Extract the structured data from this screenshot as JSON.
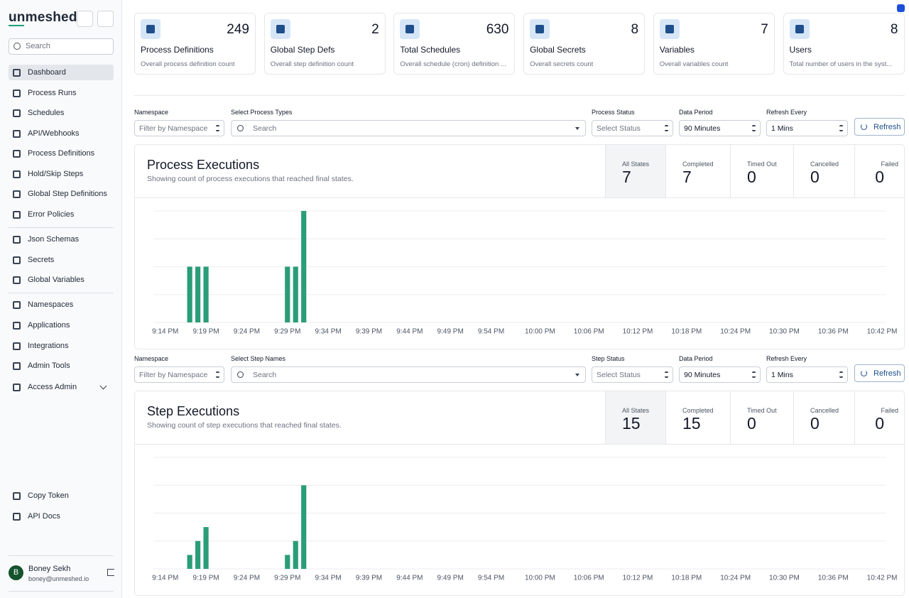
{
  "sidebar": {
    "logo": "unmeshed",
    "search_placeholder": "Search",
    "nav": [
      "Dashboard",
      "Process Runs",
      "Schedules",
      "API/Webhooks",
      "Process Definitions",
      "Hold/Skip Steps",
      "Global Step Definitions",
      "Error Policies",
      "Json Schemas",
      "Secrets",
      "Global Variables",
      "Namespaces",
      "Applications",
      "Integrations",
      "Admin Tools",
      "Access Admin"
    ],
    "bottom_nav": [
      "Copy Token",
      "API Docs"
    ],
    "user": {
      "initial": "B",
      "name": "Boney Sekh",
      "email": "boney@unmeshed.io"
    }
  },
  "stats": [
    {
      "value": 249,
      "title": "Process Definitions",
      "subtitle": "Overall process definition count"
    },
    {
      "value": 2,
      "title": "Global Step Defs",
      "subtitle": "Overall step definition count"
    },
    {
      "value": 630,
      "title": "Total Schedules",
      "subtitle": "Overall schedule (cron) definition ..."
    },
    {
      "value": 8,
      "title": "Global Secrets",
      "subtitle": "Overall secrets count"
    },
    {
      "value": 7,
      "title": "Variables",
      "subtitle": "Overall variables count"
    },
    {
      "value": 8,
      "title": "Users",
      "subtitle": "Total number of users in the syst..."
    }
  ],
  "sections": [
    {
      "filters": {
        "labels": [
          "Namespace",
          "Select Process Types",
          "Process Status",
          "Data Period",
          "Refresh Every"
        ],
        "fields": [
          "Filter by Namespace",
          "Search",
          "Select Status",
          "90 Minutes",
          "1 Mins"
        ],
        "button": "Refresh"
      },
      "title": "Process Executions",
      "subtitle": "Showing count of process executions that reached final states.",
      "states": [
        {
          "label": "All States",
          "value": 7
        },
        {
          "label": "Completed",
          "value": 7
        },
        {
          "label": "Timed Out",
          "value": 0
        },
        {
          "label": "Cancelled",
          "value": 0
        },
        {
          "label": "Failed",
          "value": 0
        }
      ]
    },
    {
      "filters": {
        "labels": [
          "Namespace",
          "Select Step Names",
          "Step Status",
          "Data Period",
          "Refresh Every"
        ],
        "fields": [
          "Filter by Namespace",
          "Search",
          "Select Status",
          "90 Minutes",
          "1 Mins"
        ],
        "button": "Refresh"
      },
      "title": "Step Executions",
      "subtitle": "Showing count of step executions that reached final states.",
      "states": [
        {
          "label": "All States",
          "value": 15
        },
        {
          "label": "Completed",
          "value": 15
        },
        {
          "label": "Timed Out",
          "value": 0
        },
        {
          "label": "Cancelled",
          "value": 0
        },
        {
          "label": "Failed",
          "value": 0
        }
      ]
    }
  ],
  "chart_data": [
    {
      "type": "bar",
      "color": "#2a9d78",
      "ylim": [
        0,
        2
      ],
      "yticks": [
        0,
        0.5,
        1,
        1.5,
        2
      ],
      "grid": true,
      "categories": [
        "9:14 PM",
        null,
        null,
        null,
        null,
        "9:19 PM",
        null,
        null,
        null,
        null,
        "9:24 PM",
        null,
        null,
        null,
        null,
        "9:29 PM",
        null,
        null,
        null,
        null,
        "9:34 PM",
        null,
        null,
        null,
        null,
        "9:39 PM",
        null,
        null,
        null,
        null,
        "9:44 PM",
        null,
        null,
        null,
        null,
        "9:49 PM",
        null,
        null,
        null,
        null,
        "9:54 PM",
        null,
        null,
        null,
        null,
        null,
        "10:00 PM",
        null,
        null,
        null,
        null,
        null,
        "10:06 PM",
        null,
        null,
        null,
        null,
        null,
        "10:12 PM",
        null,
        null,
        null,
        null,
        null,
        "10:18 PM",
        null,
        null,
        null,
        null,
        null,
        "10:24 PM",
        null,
        null,
        null,
        null,
        null,
        "10:30 PM",
        null,
        null,
        null,
        null,
        null,
        "10:36 PM",
        null,
        null,
        null,
        null,
        null,
        "10:42 PM",
        null
      ],
      "values": [
        0,
        0,
        0,
        1,
        1,
        1,
        0,
        0,
        0,
        0,
        0,
        0,
        0,
        0,
        0,
        1,
        1,
        2,
        0,
        0,
        0,
        0,
        0,
        0,
        0,
        0,
        0,
        0,
        0,
        0,
        0,
        0,
        0,
        0,
        0,
        0,
        0,
        0,
        0,
        0,
        0,
        0,
        0,
        0,
        0,
        0,
        0,
        0,
        0,
        0,
        0,
        0,
        0,
        0,
        0,
        0,
        0,
        0,
        0,
        0,
        0,
        0,
        0,
        0,
        0,
        0,
        0,
        0,
        0,
        0,
        0,
        0,
        0,
        0,
        0,
        0,
        0,
        0,
        0,
        0,
        0,
        0,
        0,
        0,
        0,
        0,
        0,
        0,
        0,
        0
      ]
    },
    {
      "type": "bar",
      "color": "#2a9d78",
      "ylim": [
        0,
        8
      ],
      "yticks": [
        0,
        2,
        4,
        6,
        8
      ],
      "grid": true,
      "categories": [
        "9:14 PM",
        null,
        null,
        null,
        null,
        "9:19 PM",
        null,
        null,
        null,
        null,
        "9:24 PM",
        null,
        null,
        null,
        null,
        "9:29 PM",
        null,
        null,
        null,
        null,
        "9:34 PM",
        null,
        null,
        null,
        null,
        "9:39 PM",
        null,
        null,
        null,
        null,
        "9:44 PM",
        null,
        null,
        null,
        null,
        "9:49 PM",
        null,
        null,
        null,
        null,
        "9:54 PM",
        null,
        null,
        null,
        null,
        null,
        "10:00 PM",
        null,
        null,
        null,
        null,
        null,
        "10:06 PM",
        null,
        null,
        null,
        null,
        null,
        "10:12 PM",
        null,
        null,
        null,
        null,
        null,
        "10:18 PM",
        null,
        null,
        null,
        null,
        null,
        "10:24 PM",
        null,
        null,
        null,
        null,
        null,
        "10:30 PM",
        null,
        null,
        null,
        null,
        null,
        "10:36 PM",
        null,
        null,
        null,
        null,
        null,
        "10:42 PM",
        null
      ],
      "values": [
        0,
        0,
        0,
        1,
        2,
        3,
        0,
        0,
        0,
        0,
        0,
        0,
        0,
        0,
        0,
        1,
        2,
        6,
        0,
        0,
        0,
        0,
        0,
        0,
        0,
        0,
        0,
        0,
        0,
        0,
        0,
        0,
        0,
        0,
        0,
        0,
        0,
        0,
        0,
        0,
        0,
        0,
        0,
        0,
        0,
        0,
        0,
        0,
        0,
        0,
        0,
        0,
        0,
        0,
        0,
        0,
        0,
        0,
        0,
        0,
        0,
        0,
        0,
        0,
        0,
        0,
        0,
        0,
        0,
        0,
        0,
        0,
        0,
        0,
        0,
        0,
        0,
        0,
        0,
        0,
        0,
        0,
        0,
        0,
        0,
        0,
        0,
        0,
        0,
        0
      ]
    }
  ]
}
